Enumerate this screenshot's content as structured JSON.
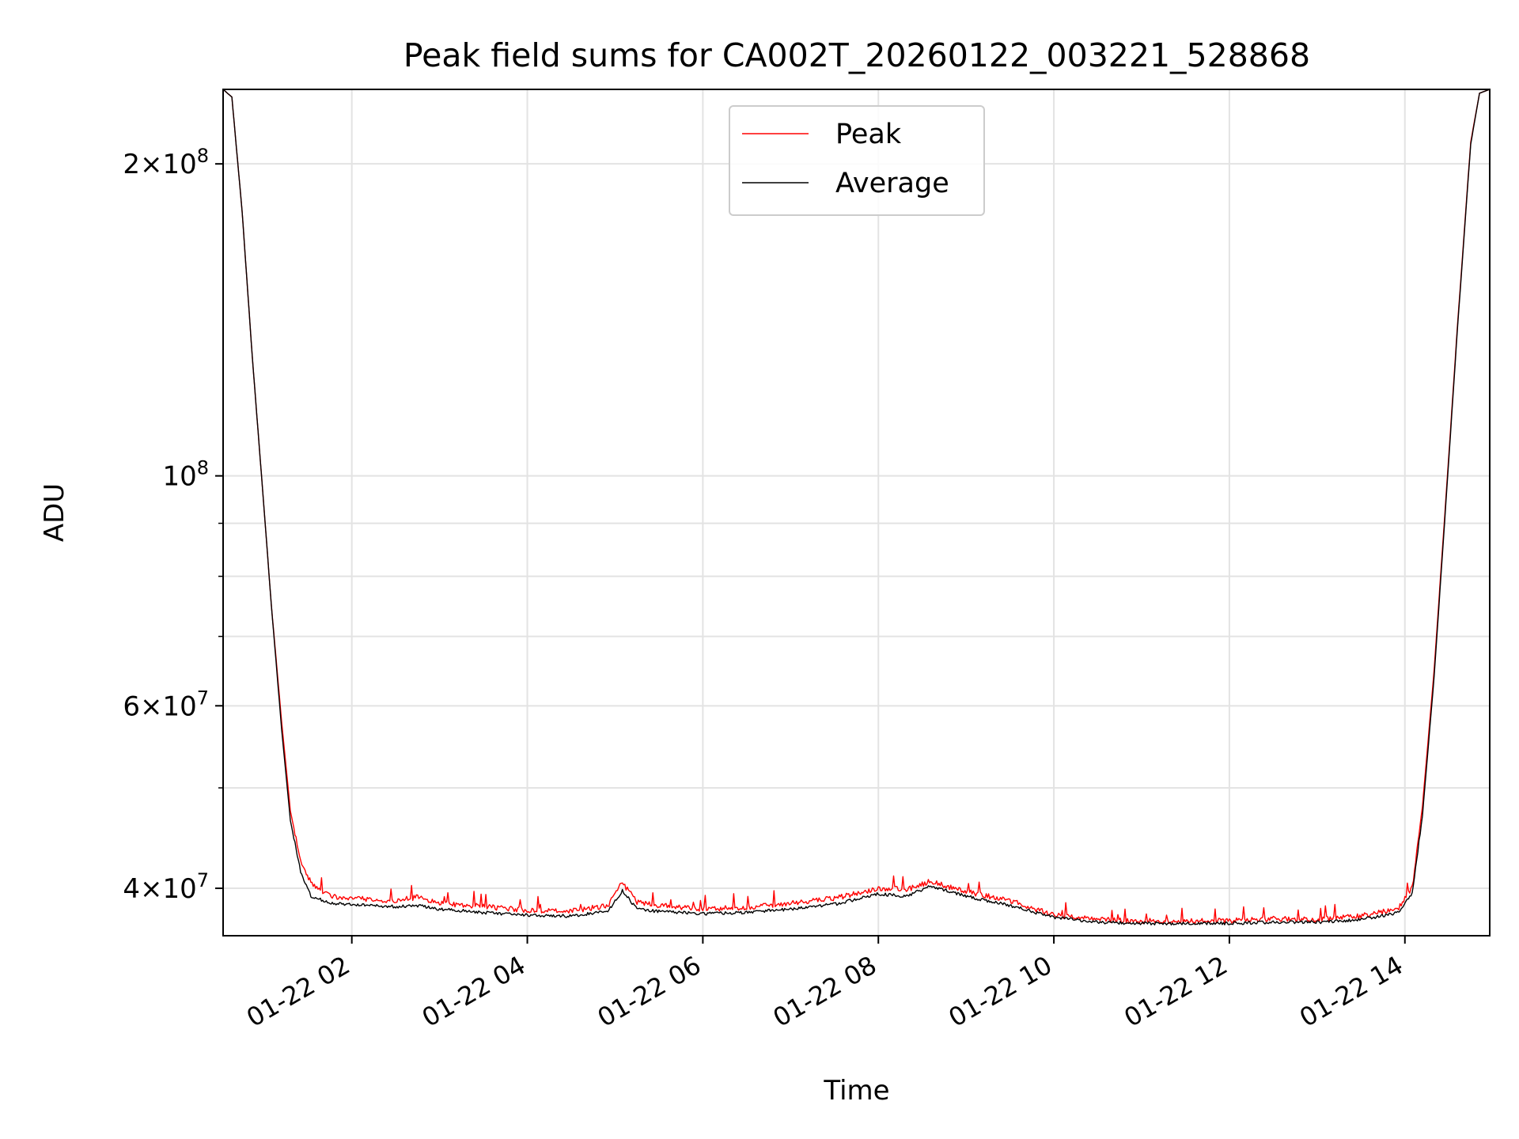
{
  "chart_data": {
    "type": "line",
    "title": "Peak field sums for CA002T_20260122_003221_528868",
    "xlabel": "Time",
    "ylabel": "ADU",
    "xlim": [
      "2026-01-22 00:32",
      "2026-01-22 14:58"
    ],
    "ylim": [
      36000000,
      236000000
    ],
    "yscale": "log",
    "grid": true,
    "legend_position": "top-center",
    "x_ticks": [
      {
        "t": "2026-01-22 02:00",
        "label": "01-22 02"
      },
      {
        "t": "2026-01-22 04:00",
        "label": "01-22 04"
      },
      {
        "t": "2026-01-22 06:00",
        "label": "01-22 06"
      },
      {
        "t": "2026-01-22 08:00",
        "label": "01-22 08"
      },
      {
        "t": "2026-01-22 10:00",
        "label": "01-22 10"
      },
      {
        "t": "2026-01-22 12:00",
        "label": "01-22 12"
      },
      {
        "t": "2026-01-22 14:00",
        "label": "01-22 14"
      }
    ],
    "y_major_ticks": [
      {
        "v": 40000000,
        "base": "4",
        "exp": "7"
      },
      {
        "v": 60000000,
        "base": "6",
        "exp": "7"
      },
      {
        "v": 100000000,
        "base": "",
        "exp": "8"
      },
      {
        "v": 200000000,
        "base": "2",
        "exp": "8"
      }
    ],
    "y_minor_ticks": [
      50000000,
      70000000,
      80000000,
      90000000
    ],
    "series": [
      {
        "name": "Peak",
        "color": "#ff0000",
        "points": [
          [
            "2026-01-22 00:32",
            236000000
          ],
          [
            "2026-01-22 00:38",
            232000000
          ],
          [
            "2026-01-22 00:45",
            180000000
          ],
          [
            "2026-01-22 00:52",
            130000000
          ],
          [
            "2026-01-22 00:59",
            97000000
          ],
          [
            "2026-01-22 01:05",
            75000000
          ],
          [
            "2026-01-22 01:12",
            58000000
          ],
          [
            "2026-01-22 01:18",
            47500000
          ],
          [
            "2026-01-22 01:25",
            42500000
          ],
          [
            "2026-01-22 01:32",
            40500000
          ],
          [
            "2026-01-22 01:45",
            39300000
          ],
          [
            "2026-01-22 02:00",
            39100000
          ],
          [
            "2026-01-22 02:30",
            38900000
          ],
          [
            "2026-01-22 02:45",
            39200000
          ],
          [
            "2026-01-22 03:00",
            38700000
          ],
          [
            "2026-01-22 03:30",
            38400000
          ],
          [
            "2026-01-22 04:00",
            38100000
          ],
          [
            "2026-01-22 04:30",
            38000000
          ],
          [
            "2026-01-22 04:55",
            38500000
          ],
          [
            "2026-01-22 05:05",
            40500000
          ],
          [
            "2026-01-22 05:15",
            38800000
          ],
          [
            "2026-01-22 05:30",
            38500000
          ],
          [
            "2026-01-22 06:00",
            38200000
          ],
          [
            "2026-01-22 06:30",
            38300000
          ],
          [
            "2026-01-22 07:00",
            38700000
          ],
          [
            "2026-01-22 07:30",
            39100000
          ],
          [
            "2026-01-22 08:00",
            40000000
          ],
          [
            "2026-01-22 08:20",
            39900000
          ],
          [
            "2026-01-22 08:35",
            40600000
          ],
          [
            "2026-01-22 09:00",
            39700000
          ],
          [
            "2026-01-22 09:30",
            38900000
          ],
          [
            "2026-01-22 10:00",
            37700000
          ],
          [
            "2026-01-22 10:30",
            37300000
          ],
          [
            "2026-01-22 11:00",
            37200000
          ],
          [
            "2026-01-22 11:30",
            37200000
          ],
          [
            "2026-01-22 12:00",
            37200000
          ],
          [
            "2026-01-22 12:30",
            37400000
          ],
          [
            "2026-01-22 13:00",
            37300000
          ],
          [
            "2026-01-22 13:30",
            37600000
          ],
          [
            "2026-01-22 13:55",
            38200000
          ],
          [
            "2026-01-22 14:05",
            40000000
          ],
          [
            "2026-01-22 14:12",
            48000000
          ],
          [
            "2026-01-22 14:20",
            65000000
          ],
          [
            "2026-01-22 14:28",
            95000000
          ],
          [
            "2026-01-22 14:36",
            140000000
          ],
          [
            "2026-01-22 14:45",
            210000000
          ],
          [
            "2026-01-22 14:51",
            234000000
          ],
          [
            "2026-01-22 14:58",
            236000000
          ]
        ]
      },
      {
        "name": "Average",
        "color": "#000000",
        "points": [
          [
            "2026-01-22 00:32",
            236000000
          ],
          [
            "2026-01-22 00:38",
            232000000
          ],
          [
            "2026-01-22 00:45",
            180000000
          ],
          [
            "2026-01-22 00:52",
            130000000
          ],
          [
            "2026-01-22 00:59",
            97000000
          ],
          [
            "2026-01-22 01:05",
            75000000
          ],
          [
            "2026-01-22 01:12",
            57000000
          ],
          [
            "2026-01-22 01:18",
            46500000
          ],
          [
            "2026-01-22 01:25",
            41500000
          ],
          [
            "2026-01-22 01:32",
            39300000
          ],
          [
            "2026-01-22 01:45",
            38700000
          ],
          [
            "2026-01-22 02:00",
            38600000
          ],
          [
            "2026-01-22 02:30",
            38400000
          ],
          [
            "2026-01-22 02:45",
            38500000
          ],
          [
            "2026-01-22 03:00",
            38200000
          ],
          [
            "2026-01-22 03:30",
            37900000
          ],
          [
            "2026-01-22 04:00",
            37700000
          ],
          [
            "2026-01-22 04:30",
            37600000
          ],
          [
            "2026-01-22 04:55",
            38000000
          ],
          [
            "2026-01-22 05:05",
            39800000
          ],
          [
            "2026-01-22 05:15",
            38200000
          ],
          [
            "2026-01-22 05:30",
            38000000
          ],
          [
            "2026-01-22 06:00",
            37800000
          ],
          [
            "2026-01-22 06:30",
            37900000
          ],
          [
            "2026-01-22 07:00",
            38200000
          ],
          [
            "2026-01-22 07:30",
            38600000
          ],
          [
            "2026-01-22 08:00",
            39500000
          ],
          [
            "2026-01-22 08:20",
            39300000
          ],
          [
            "2026-01-22 08:35",
            40200000
          ],
          [
            "2026-01-22 09:00",
            39300000
          ],
          [
            "2026-01-22 09:30",
            38500000
          ],
          [
            "2026-01-22 10:00",
            37500000
          ],
          [
            "2026-01-22 10:30",
            37100000
          ],
          [
            "2026-01-22 11:00",
            37000000
          ],
          [
            "2026-01-22 11:30",
            37000000
          ],
          [
            "2026-01-22 12:00",
            37000000
          ],
          [
            "2026-01-22 12:30",
            37100000
          ],
          [
            "2026-01-22 13:00",
            37100000
          ],
          [
            "2026-01-22 13:30",
            37300000
          ],
          [
            "2026-01-22 13:55",
            37900000
          ],
          [
            "2026-01-22 14:05",
            39500000
          ],
          [
            "2026-01-22 14:12",
            47000000
          ],
          [
            "2026-01-22 14:20",
            64000000
          ],
          [
            "2026-01-22 14:28",
            94000000
          ],
          [
            "2026-01-22 14:36",
            139000000
          ],
          [
            "2026-01-22 14:45",
            209000000
          ],
          [
            "2026-01-22 14:51",
            234000000
          ],
          [
            "2026-01-22 14:58",
            236000000
          ]
        ]
      }
    ]
  }
}
